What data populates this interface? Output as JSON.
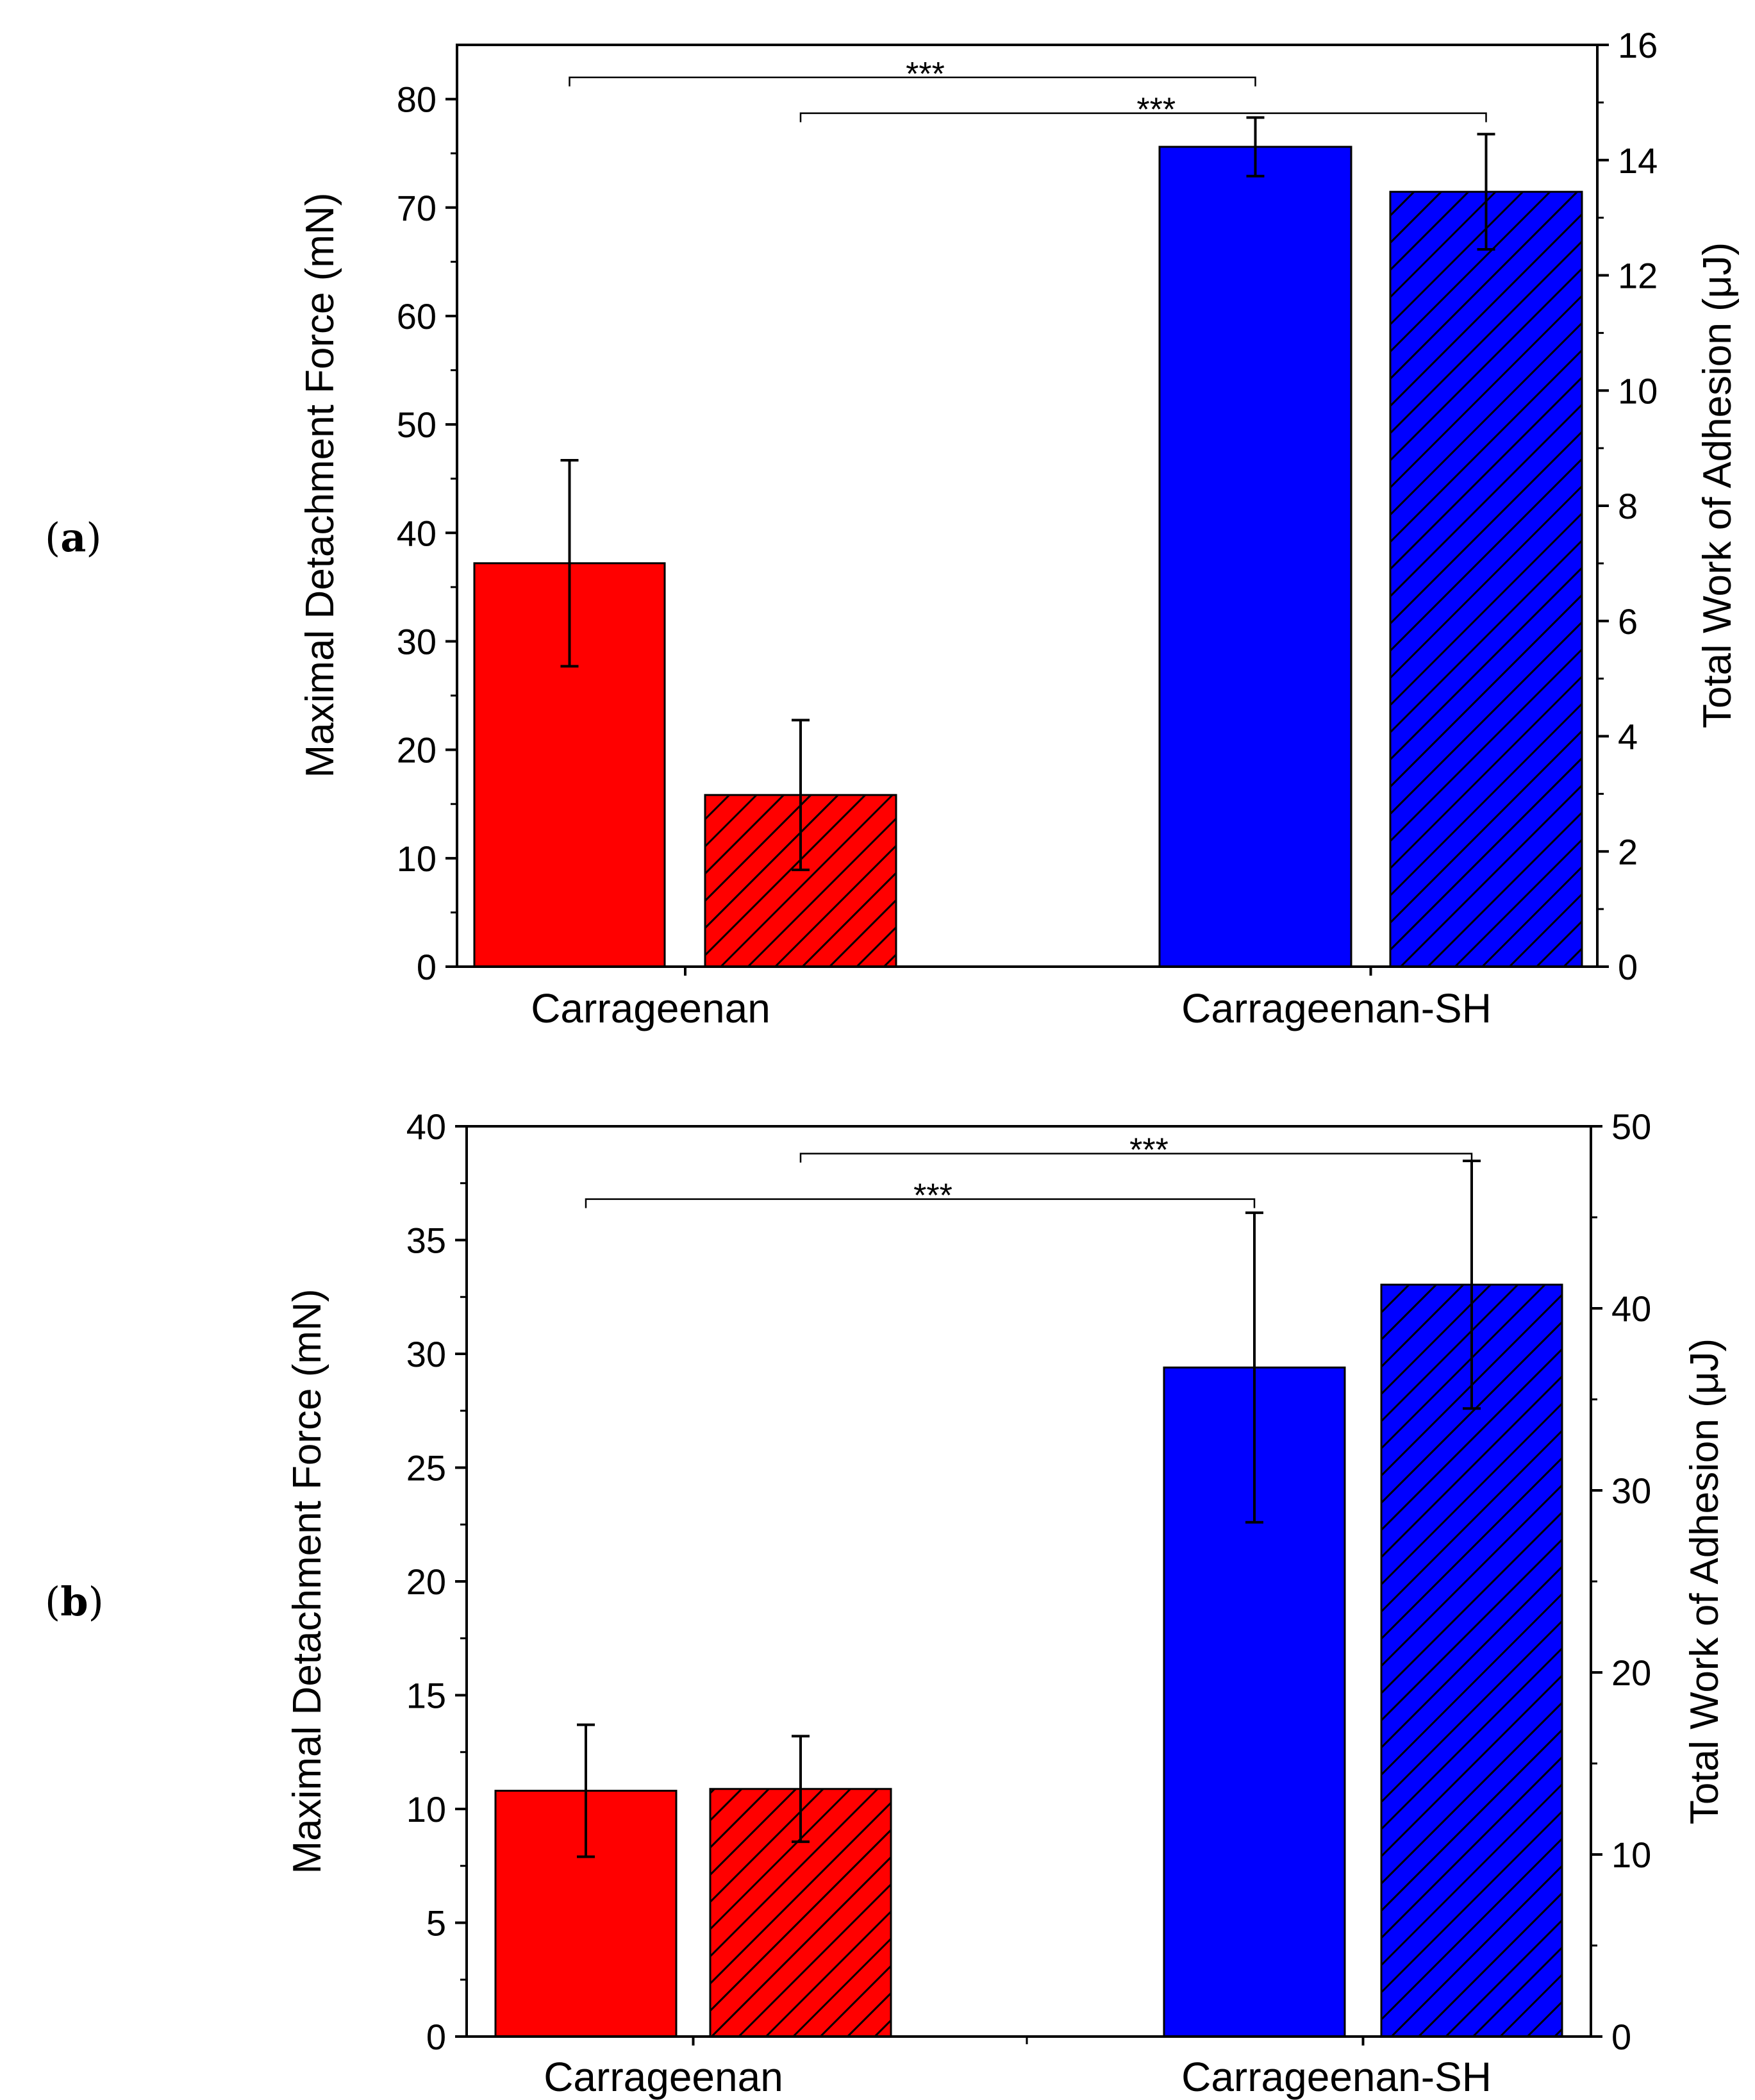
{
  "colors": {
    "carrageenan": "#ff0000",
    "carrageenan_sh": "#0000ff",
    "hatch": "#000000",
    "axis": "#000000"
  },
  "chart_data": [
    {
      "type": "bar",
      "panel_label": "a",
      "categories": [
        "Carrageenan",
        "Carrageenan-SH"
      ],
      "ylabel": "Maximal Detachment Force (mN)",
      "y2label": "Total Work of Adhesion (μJ)",
      "ylim": [
        0,
        85
      ],
      "y2lim": [
        0,
        16
      ],
      "yticks": [
        0,
        10,
        20,
        30,
        40,
        50,
        60,
        70,
        80
      ],
      "y2ticks": [
        0,
        2,
        4,
        6,
        8,
        10,
        12,
        14,
        16
      ],
      "series": [
        {
          "name": "Maximal Detachment Force",
          "axis": "left",
          "pattern": "solid",
          "values": [
            37.2,
            75.6
          ],
          "errors": [
            9.5,
            2.7
          ]
        },
        {
          "name": "Total Work of Adhesion",
          "axis": "right",
          "pattern": "hatched",
          "values": [
            2.98,
            13.45
          ],
          "errors": [
            1.3,
            1.0
          ]
        }
      ],
      "significance": [
        {
          "from": [
            0,
            0
          ],
          "to": [
            1,
            0
          ],
          "label": "***",
          "level": 82
        },
        {
          "from": [
            0,
            1
          ],
          "to": [
            1,
            1
          ],
          "label": "***",
          "level": 78.7
        }
      ]
    },
    {
      "type": "bar",
      "panel_label": "b",
      "categories": [
        "Carrageenan",
        "Carrageenan-SH"
      ],
      "ylabel": "Maximal Detachment Force (mN)",
      "y2label": "Total Work of Adhesion (μJ)",
      "ylim": [
        0,
        40
      ],
      "y2lim": [
        0,
        50
      ],
      "yticks": [
        0,
        5,
        10,
        15,
        20,
        25,
        30,
        35,
        40
      ],
      "y2ticks": [
        0,
        10,
        20,
        30,
        40,
        50
      ],
      "series": [
        {
          "name": "Maximal Detachment Force",
          "axis": "left",
          "pattern": "solid",
          "values": [
            10.8,
            29.4
          ],
          "errors": [
            2.9,
            6.8
          ]
        },
        {
          "name": "Total Work of Adhesion",
          "axis": "right",
          "pattern": "hatched",
          "values": [
            13.6,
            41.3
          ],
          "errors": [
            2.9,
            6.8
          ]
        }
      ],
      "significance": [
        {
          "from": [
            0,
            0
          ],
          "to": [
            1,
            0
          ],
          "label": "***",
          "level": 36.8
        },
        {
          "from": [
            0,
            1
          ],
          "to": [
            1,
            1
          ],
          "label": "***",
          "level": 38.8
        }
      ]
    }
  ]
}
